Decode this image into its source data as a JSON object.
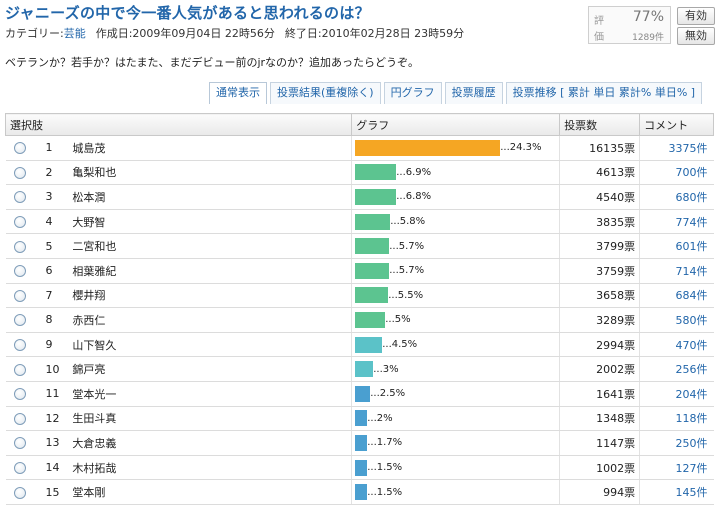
{
  "page": {
    "title": "ジャニーズの中で今一番人気があると思われるのは？",
    "category_prefix": "カテゴリー:",
    "category": "芸能",
    "created": "作成日:2009年09月04日 22時56分",
    "ended": "終了日:2010年02月28日 23時59分",
    "description": "ベテランか？若手か？はたまた、まだデビュー前のjrなのか？追加あったらどうぞ。"
  },
  "rating": {
    "label1": "評",
    "label2": "価",
    "percent": "77%",
    "count": "1289件",
    "good_button": "有効",
    "bad_button": "無効"
  },
  "tabs": [
    "通常表示",
    "投票結果(重複除く)",
    "円グラフ",
    "投票履歴",
    "投票推移 [ 累計 単日 累計% 単日% ]"
  ],
  "table": {
    "headers": [
      "選択肢",
      "グラフ",
      "投票数",
      "コメント"
    ],
    "rows": [
      {
        "rank": "1",
        "name": "城島茂",
        "percent": 24.3,
        "percent_label": "...24.3%",
        "votes": "16135票",
        "comments": "3375件",
        "color": "#f5a623"
      },
      {
        "rank": "2",
        "name": "亀梨和也",
        "percent": 6.9,
        "percent_label": "...6.9%",
        "votes": "4613票",
        "comments": "700件",
        "color": "#5cc490"
      },
      {
        "rank": "3",
        "name": "松本潤",
        "percent": 6.8,
        "percent_label": "...6.8%",
        "votes": "4540票",
        "comments": "680件",
        "color": "#5cc490"
      },
      {
        "rank": "4",
        "name": "大野智",
        "percent": 5.8,
        "percent_label": "...5.8%",
        "votes": "3835票",
        "comments": "774件",
        "color": "#5cc490"
      },
      {
        "rank": "5",
        "name": "二宮和也",
        "percent": 5.7,
        "percent_label": "...5.7%",
        "votes": "3799票",
        "comments": "601件",
        "color": "#5cc490"
      },
      {
        "rank": "6",
        "name": "相葉雅紀",
        "percent": 5.7,
        "percent_label": "...5.7%",
        "votes": "3759票",
        "comments": "714件",
        "color": "#5cc490"
      },
      {
        "rank": "7",
        "name": "櫻井翔",
        "percent": 5.5,
        "percent_label": "...5.5%",
        "votes": "3658票",
        "comments": "684件",
        "color": "#5cc490"
      },
      {
        "rank": "8",
        "name": "赤西仁",
        "percent": 5,
        "percent_label": "...5%",
        "votes": "3289票",
        "comments": "580件",
        "color": "#5cc490"
      },
      {
        "rank": "9",
        "name": "山下智久",
        "percent": 4.5,
        "percent_label": "...4.5%",
        "votes": "2994票",
        "comments": "470件",
        "color": "#5bc2c8"
      },
      {
        "rank": "10",
        "name": "錦戸亮",
        "percent": 3,
        "percent_label": "...3%",
        "votes": "2002票",
        "comments": "256件",
        "color": "#5bc2c8"
      },
      {
        "rank": "11",
        "name": "堂本光一",
        "percent": 2.5,
        "percent_label": "...2.5%",
        "votes": "1641票",
        "comments": "204件",
        "color": "#4a9fd0"
      },
      {
        "rank": "12",
        "name": "生田斗真",
        "percent": 2,
        "percent_label": "...2%",
        "votes": "1348票",
        "comments": "118件",
        "color": "#4a9fd0"
      },
      {
        "rank": "13",
        "name": "大倉忠義",
        "percent": 1.7,
        "percent_label": "...1.7%",
        "votes": "1147票",
        "comments": "250件",
        "color": "#4a9fd0"
      },
      {
        "rank": "14",
        "name": "木村拓哉",
        "percent": 1.5,
        "percent_label": "...1.5%",
        "votes": "1002票",
        "comments": "127件",
        "color": "#4a9fd0"
      },
      {
        "rank": "15",
        "name": "堂本剛",
        "percent": 1.5,
        "percent_label": "...1.5%",
        "votes": "994票",
        "comments": "145件",
        "color": "#4a9fd0"
      }
    ]
  },
  "icons": {
    "radio": "radio-button"
  }
}
